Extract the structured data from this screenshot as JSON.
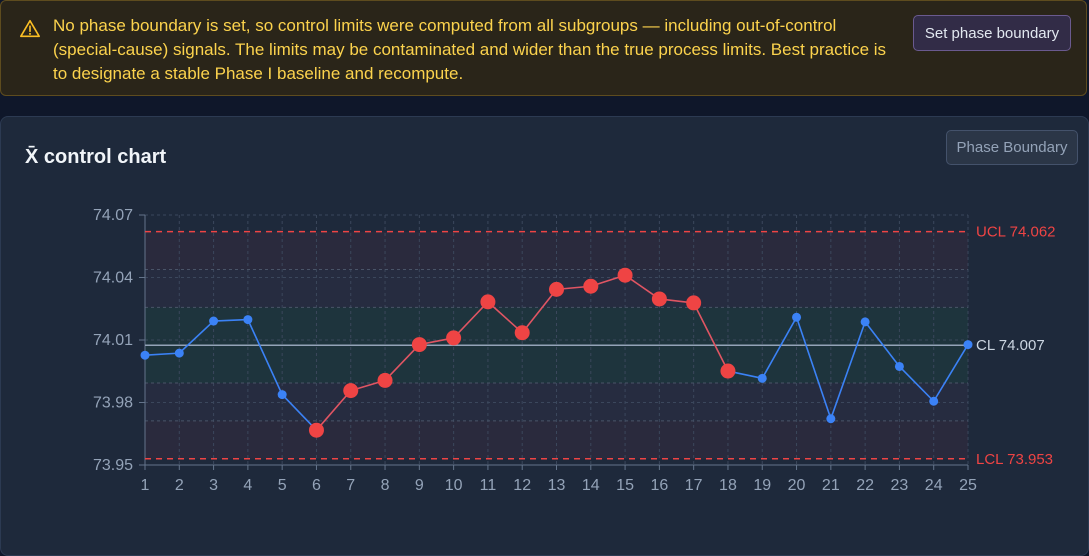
{
  "banner": {
    "icon": "warning-triangle-icon",
    "message": "No phase boundary is set, so control limits were computed from all subgroups — including out-of-control (special-cause) signals. The limits may be contaminated and wider than the true process limits. Best practice is to designate a stable Phase I baseline and recompute.",
    "button_label": "Set phase boundary",
    "text_color": "#fcd34d"
  },
  "card": {
    "title": "X̄ control chart",
    "button_label": "Phase Boundary"
  },
  "chart_data": {
    "type": "line",
    "title": "X̄ control chart",
    "xlabel": "",
    "ylabel": "",
    "x": [
      1,
      2,
      3,
      4,
      5,
      6,
      7,
      8,
      9,
      10,
      11,
      12,
      13,
      14,
      15,
      16,
      17,
      18,
      19,
      20,
      21,
      22,
      23,
      24,
      25
    ],
    "values": [
      74.0027,
      74.0037,
      74.0191,
      74.0198,
      73.9838,
      73.9667,
      73.9857,
      73.9906,
      74.0078,
      74.011,
      74.0283,
      74.0135,
      74.0343,
      74.0358,
      74.0411,
      74.0297,
      74.0278,
      73.9951,
      73.9916,
      74.0209,
      73.9722,
      74.0187,
      73.9973,
      73.9806,
      74.0078
    ],
    "out_of_control": [
      6,
      7,
      8,
      9,
      10,
      11,
      12,
      13,
      14,
      15,
      16,
      17,
      18
    ],
    "ylim": [
      73.95,
      74.07
    ],
    "y_ticks": [
      "73.95",
      "73.98",
      "74.01",
      "74.04",
      "74.07"
    ],
    "x_ticks": [
      "1",
      "2",
      "3",
      "4",
      "5",
      "6",
      "7",
      "8",
      "9",
      "10",
      "11",
      "12",
      "13",
      "14",
      "15",
      "16",
      "17",
      "18",
      "19",
      "20",
      "21",
      "22",
      "23",
      "24",
      "25"
    ],
    "ucl": 74.062,
    "cl": 74.0075,
    "lcl": 73.953,
    "ucl_label": "UCL 74.062",
    "cl_label": "CL 74.007",
    "lcl_label": "LCL 73.953",
    "grid": true,
    "colors": {
      "in_control": "#3b82f6",
      "out_of_control": "#ef4444",
      "limit_line": "#ef4444",
      "center_line": "#94a3b8",
      "zone_a": "#2a2a3d",
      "zone_b": "#262c40",
      "zone_c": "#1e343d"
    }
  }
}
